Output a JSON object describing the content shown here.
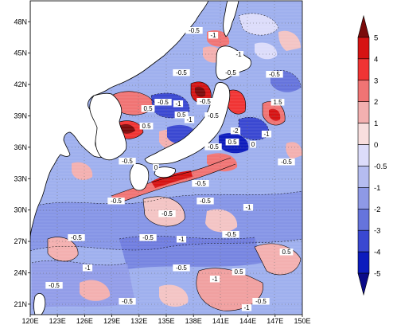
{
  "map": {
    "lat_labels": [
      "48N",
      "45N",
      "42N",
      "39N",
      "36N",
      "33N",
      "30N",
      "27N",
      "24N",
      "21N"
    ],
    "lon_labels": [
      "120E",
      "123E",
      "126E",
      "129E",
      "132E",
      "135E",
      "138E",
      "141E",
      "144E",
      "147E",
      "150E"
    ],
    "lat_range": [
      20,
      50
    ],
    "lon_range": [
      120,
      150
    ],
    "contour_labels": [
      "-1",
      "-0.5",
      "-0.5",
      "-0.5",
      "-1",
      "0.5",
      "-0.5",
      "-1",
      "-0.5",
      "1.5",
      "0.5",
      "-0.5",
      "0.5",
      "-1",
      "-2",
      "-1",
      "0.5",
      "-0.5",
      "0",
      "-0.5",
      "0",
      "-0.5",
      "-0.5",
      "-0.5",
      "-1",
      "-0.5",
      "-0.5",
      "-0.5",
      "-1",
      "-0.5",
      "-1",
      "0.5",
      "-0.5",
      "-0.5",
      "-1",
      "-0.5",
      "0.5",
      "-0.5",
      "-1",
      "-0.5",
      "-0.5"
    ],
    "colors": {
      "ocean_base": "#9fb0ee",
      "land": "#ffffff",
      "coast": "#000000"
    }
  },
  "colorbar": {
    "levels": [
      "5",
      "4",
      "3",
      "2",
      "1",
      "0",
      "-0.5",
      "-1",
      "-2",
      "-3",
      "-4",
      "-5"
    ],
    "colors": [
      "#7a0a0a",
      "#d61313",
      "#f03434",
      "#f07474",
      "#f3b0b0",
      "#f8dede",
      "#dcdcfa",
      "#b5bcf0",
      "#8e99e6",
      "#6674dc",
      "#3a48d1",
      "#0c1bbd",
      "#0a0a88"
    ]
  }
}
